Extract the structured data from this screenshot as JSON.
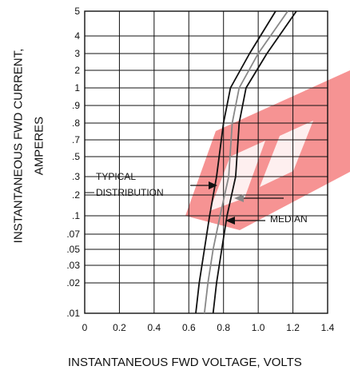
{
  "chart_data": {
    "type": "line",
    "xlabel": "INSTANTANEOUS FWD VOLTAGE, VOLTS",
    "ylabel_line1": "INSTANTANEOUS FWD CURRENT,",
    "ylabel_line2": "AMPERES",
    "x_ticks": [
      "0",
      "0.2",
      "0.4",
      "0.6",
      "0.8",
      "1.0",
      "1.2",
      "1.4"
    ],
    "xlim": [
      0,
      1.4
    ],
    "y_ticks": [
      ".01",
      ".02",
      ".03",
      ".05",
      ".07",
      ".1",
      ".2",
      ".3",
      ".5",
      ".7",
      ".8",
      ".9",
      "1",
      "2",
      "3",
      "4",
      "5"
    ],
    "y_scale": "custom-log",
    "grid": true,
    "annotations": {
      "typical": "TYPICAL",
      "distribution": "DISTRIBUTION",
      "median": "MEDIAN"
    },
    "series": [
      {
        "color": "#111111",
        "points": [
          [
            0.64,
            0.01
          ],
          [
            0.66,
            0.02
          ],
          [
            0.69,
            0.05
          ],
          [
            0.72,
            0.1
          ],
          [
            0.76,
            0.3
          ],
          [
            0.8,
            0.8
          ],
          [
            0.84,
            1
          ],
          [
            0.95,
            3
          ],
          [
            1.1,
            5
          ]
        ]
      },
      {
        "color": "#888888",
        "points": [
          [
            0.69,
            0.01
          ],
          [
            0.71,
            0.02
          ],
          [
            0.74,
            0.05
          ],
          [
            0.78,
            0.1
          ],
          [
            0.83,
            0.3
          ],
          [
            0.85,
            0.8
          ],
          [
            0.89,
            1
          ],
          [
            1.0,
            3
          ],
          [
            1.17,
            5
          ]
        ]
      },
      {
        "color": "#111111",
        "points": [
          [
            0.74,
            0.01
          ],
          [
            0.76,
            0.02
          ],
          [
            0.79,
            0.05
          ],
          [
            0.82,
            0.1
          ],
          [
            0.87,
            0.3
          ],
          [
            0.89,
            0.8
          ],
          [
            0.93,
            1
          ],
          [
            1.05,
            3
          ],
          [
            1.22,
            5
          ]
        ]
      }
    ],
    "watermark_color": "#ee3b3b"
  }
}
